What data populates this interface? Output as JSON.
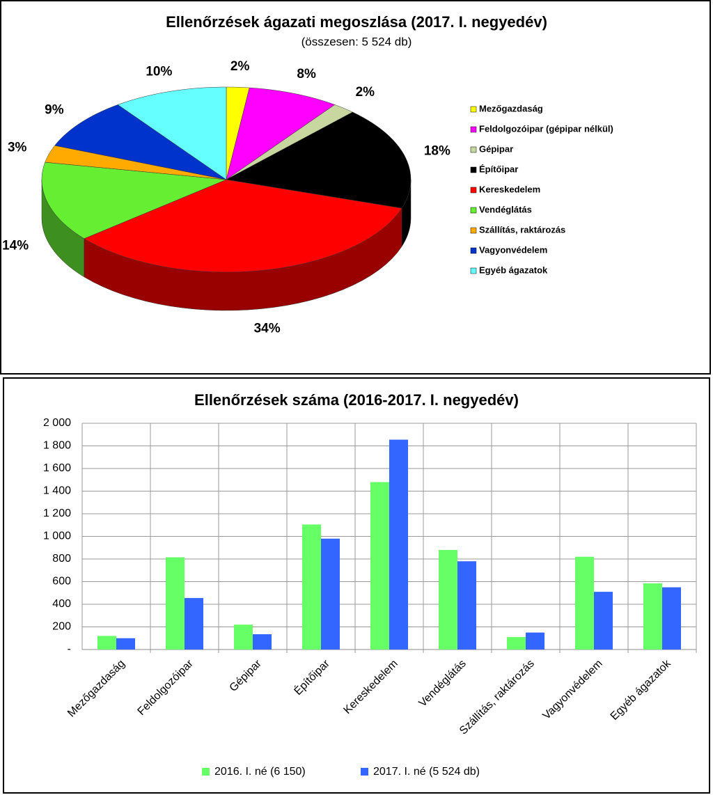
{
  "chart_data": [
    {
      "type": "pie",
      "title": "Ellenőrzések ágazati megoszlása (2017. I. negyedév)",
      "subtitle": "(összesen: 5 524 db)",
      "categories": [
        "Mezőgazdaság",
        "Feldolgozóipar (gépipar nélkül)",
        "Gépipar",
        "Építőipar",
        "Kereskedelem",
        "Vendéglátás",
        "Szállítás, raktározás",
        "Vagyonvédelem",
        "Egyéb ágazatok"
      ],
      "values": [
        2,
        8,
        2,
        18,
        34,
        14,
        3,
        9,
        10
      ],
      "value_labels": [
        "2%",
        "8%",
        "2%",
        "18%",
        "34%",
        "14%",
        "3%",
        "9%",
        "10%"
      ],
      "colors": [
        "#ffff00",
        "#ff00ff",
        "#c8d6a0",
        "#000000",
        "#ff0000",
        "#66ee33",
        "#ffaa00",
        "#0033cc",
        "#66ffff"
      ],
      "legend": "right"
    },
    {
      "type": "bar",
      "title": "Ellenőrzések száma (2016-2017. I. negyedév)",
      "categories": [
        "Mezőgazdaság",
        "Feldolgozóipar",
        "Gépipar",
        "Építőipar",
        "Kereskedelem",
        "Vendéglátás",
        "Szállítás, raktározás",
        "Vagyonvédelem",
        "Egyéb ágazatok"
      ],
      "series": [
        {
          "name": "2016. I. né (6 150)",
          "color": "#66ff66",
          "values": [
            120,
            815,
            220,
            1105,
            1480,
            880,
            110,
            820,
            585
          ]
        },
        {
          "name": "2017. I. né (5 524 db)",
          "color": "#3366ff",
          "values": [
            100,
            455,
            135,
            980,
            1855,
            780,
            150,
            510,
            550
          ]
        }
      ],
      "ylim": [
        0,
        2000
      ],
      "yticks": [
        {
          "value": 0,
          "label": "-"
        },
        200,
        400,
        600,
        800,
        {
          "value": 1000,
          "label": "1 000"
        },
        {
          "value": 1200,
          "label": "1 200"
        },
        {
          "value": 1400,
          "label": "1 400"
        },
        {
          "value": 1600,
          "label": "1 600"
        },
        {
          "value": 1800,
          "label": "1 800"
        },
        {
          "value": 2000,
          "label": "2 000"
        }
      ],
      "grid": true,
      "legend": "bottom"
    }
  ]
}
